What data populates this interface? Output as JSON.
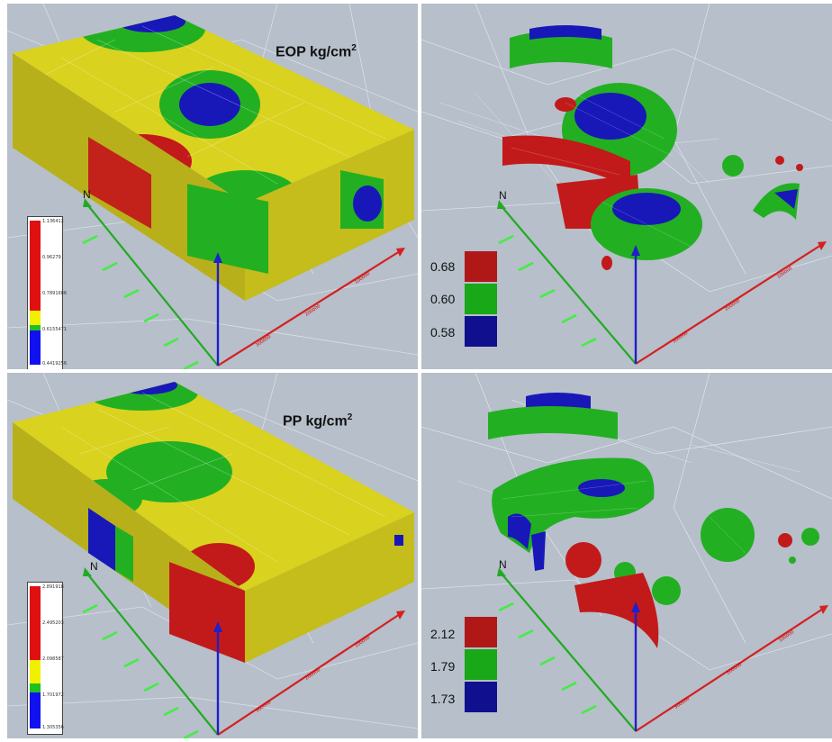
{
  "panels": {
    "eop_block": {
      "title": "EOP  kg/cm",
      "title_sup": "2",
      "north": "N",
      "colorbar_ticks": [
        "1.136412",
        "0.96279",
        "0.7891686",
        "0.6155471",
        "0.4419256"
      ],
      "scale_ticks": [
        "300000",
        "200000",
        "100000"
      ]
    },
    "eop_iso": {
      "north": "N",
      "legend": [
        {
          "value": "0.68",
          "color": "#b01818"
        },
        {
          "value": "0.60",
          "color": "#18a818"
        },
        {
          "value": "0.58",
          "color": "#10108e"
        }
      ],
      "scale_ticks": [
        "300000",
        "200000",
        "100000"
      ]
    },
    "pp_block": {
      "title": "PP kg/cm",
      "title_sup": "2",
      "north": "N",
      "colorbar_ticks": [
        "2.891918",
        "2.495203",
        "2.098587",
        "1.701972",
        "1.305356"
      ],
      "scale_ticks": [
        "300000",
        "200000",
        "100000"
      ]
    },
    "pp_iso": {
      "north": "N",
      "legend": [
        {
          "value": "2.12",
          "color": "#b01818"
        },
        {
          "value": "1.79",
          "color": "#18a818"
        },
        {
          "value": "1.73",
          "color": "#10108e"
        }
      ],
      "scale_ticks": [
        "300000",
        "200000",
        "100000"
      ]
    }
  },
  "colors": {
    "background": "#b6bfca",
    "yellow": "#d9d21e",
    "green": "#22b022",
    "red": "#c21a1a",
    "blue": "#1818b8",
    "axis_green": "#22aa22",
    "axis_red": "#d42020",
    "axis_blue": "#2020c8"
  }
}
